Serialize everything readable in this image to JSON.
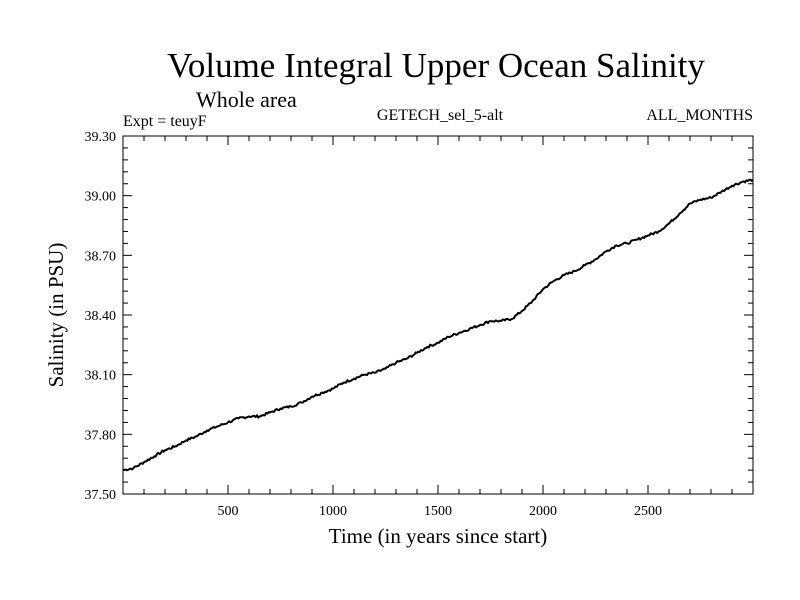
{
  "chart_data": {
    "type": "line",
    "title": "Volume Integral Upper Ocean Salinity",
    "subtitle": "Whole area",
    "left_label": "Expt = teuyF",
    "center_label": "GETECH_sel_5-alt",
    "right_label": "ALL_MONTHS",
    "xlabel": "Time (in years since start)",
    "ylabel": "Salinity (in PSU)",
    "xlim": [
      0,
      3000
    ],
    "ylim": [
      37.5,
      39.3
    ],
    "x_ticks": [
      500,
      1000,
      1500,
      2000,
      2500
    ],
    "y_ticks": [
      "37.50",
      "37.80",
      "38.10",
      "38.40",
      "38.70",
      "39.00",
      "39.30"
    ],
    "grid": false,
    "series": [
      {
        "x": [
          0,
          50,
          100,
          150,
          200,
          250,
          300,
          350,
          400,
          450,
          500,
          550,
          600,
          650,
          700,
          750,
          800,
          850,
          900,
          950,
          1000,
          1050,
          1100,
          1150,
          1200,
          1250,
          1300,
          1350,
          1400,
          1450,
          1500,
          1550,
          1600,
          1650,
          1700,
          1750,
          1800,
          1850,
          1900,
          1950,
          2000,
          2050,
          2100,
          2150,
          2200,
          2250,
          2300,
          2350,
          2400,
          2450,
          2500,
          2550,
          2600,
          2650,
          2700,
          2750,
          2800,
          2850,
          2900,
          2950,
          3000
        ],
        "values": [
          37.62,
          37.63,
          37.66,
          37.69,
          37.72,
          37.74,
          37.77,
          37.79,
          37.82,
          37.84,
          37.86,
          37.88,
          37.89,
          37.89,
          37.91,
          37.93,
          37.94,
          37.96,
          37.99,
          38.01,
          38.03,
          38.06,
          38.08,
          38.1,
          38.11,
          38.13,
          38.16,
          38.18,
          38.21,
          38.24,
          38.26,
          38.29,
          38.31,
          38.33,
          38.35,
          38.37,
          38.37,
          38.38,
          38.42,
          38.47,
          38.53,
          38.57,
          38.6,
          38.62,
          38.65,
          38.68,
          38.72,
          38.75,
          38.76,
          38.78,
          38.8,
          38.82,
          38.86,
          38.91,
          38.96,
          38.98,
          38.99,
          39.02,
          39.05,
          39.07,
          39.08
        ]
      }
    ]
  }
}
